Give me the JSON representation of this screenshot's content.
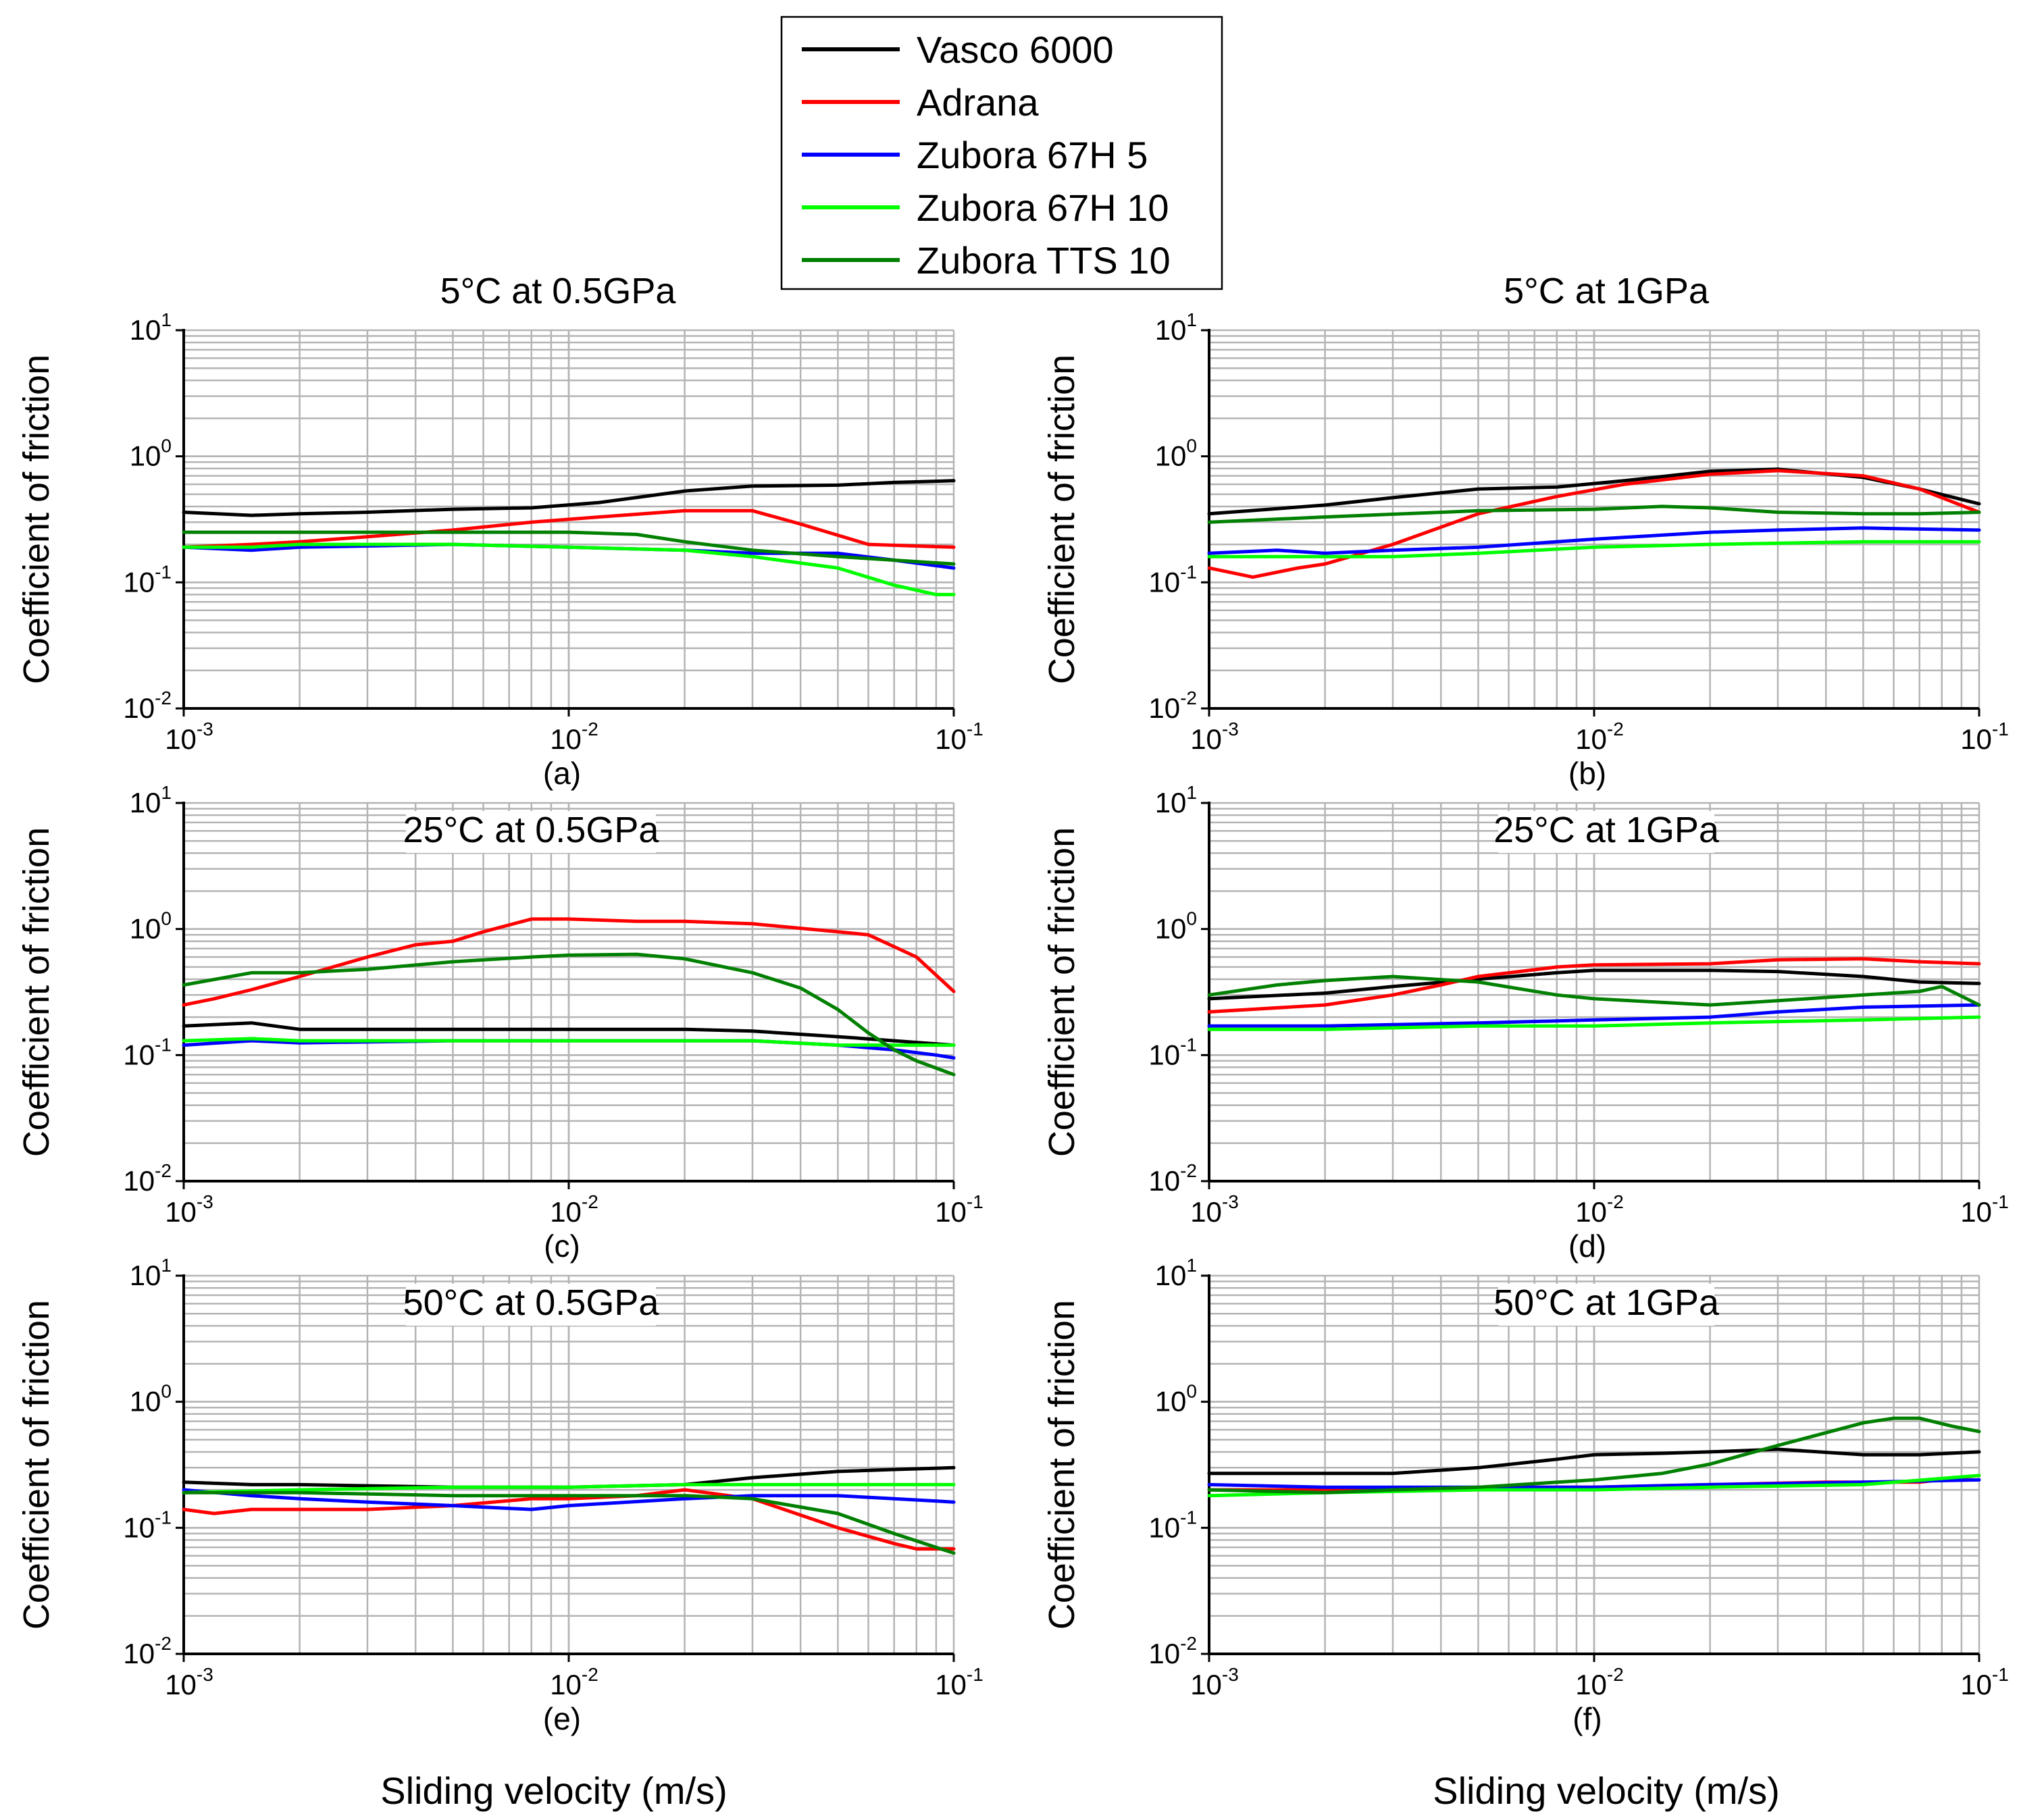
{
  "chart_data": {
    "type": "line",
    "x_scale": "log",
    "y_scale": "log",
    "xlim": [
      0.001,
      0.1
    ],
    "ylim": [
      0.01,
      10
    ],
    "x_ticks": [
      {
        "base": "10",
        "exp": "-3"
      },
      {
        "base": "10",
        "exp": "-2"
      },
      {
        "base": "10",
        "exp": "-1"
      }
    ],
    "y_ticks": [
      {
        "base": "10",
        "exp": "1"
      },
      {
        "base": "10",
        "exp": "0"
      },
      {
        "base": "10",
        "exp": "-1"
      },
      {
        "base": "10",
        "exp": "-2"
      }
    ],
    "ylabel": "Coefficient of friction",
    "xlabel": "Sliding velocity (m/s)",
    "legend": {
      "position": "top-center",
      "entries": [
        {
          "name": "Vasco 6000",
          "color": "#000000"
        },
        {
          "name": "Adrana",
          "color": "#ff0000"
        },
        {
          "name": "Zubora 67H 5",
          "color": "#0000ff"
        },
        {
          "name": "Zubora 67H 10",
          "color": "#00ff00"
        },
        {
          "name": "Zubora TTS 10",
          "color": "#008000"
        }
      ]
    },
    "panels": [
      {
        "id": "a",
        "title": "5°C at 0.5GPa",
        "caption": "(a)",
        "series": [
          {
            "name": "Vasco 6000",
            "x": [
              0.001,
              0.0015,
              0.002,
              0.003,
              0.005,
              0.008,
              0.012,
              0.02,
              0.03,
              0.05,
              0.07,
              0.1
            ],
            "y": [
              0.36,
              0.34,
              0.35,
              0.36,
              0.38,
              0.39,
              0.43,
              0.53,
              0.58,
              0.59,
              0.62,
              0.64
            ]
          },
          {
            "name": "Adrana",
            "x": [
              0.001,
              0.0015,
              0.002,
              0.003,
              0.005,
              0.008,
              0.012,
              0.02,
              0.03,
              0.04,
              0.06,
              0.1
            ],
            "y": [
              0.19,
              0.2,
              0.21,
              0.23,
              0.26,
              0.3,
              0.33,
              0.37,
              0.37,
              0.29,
              0.2,
              0.19
            ]
          },
          {
            "name": "Zubora 67H 5",
            "x": [
              0.001,
              0.0015,
              0.002,
              0.005,
              0.01,
              0.02,
              0.03,
              0.05,
              0.07,
              0.1
            ],
            "y": [
              0.19,
              0.18,
              0.19,
              0.2,
              0.19,
              0.18,
              0.17,
              0.17,
              0.15,
              0.13
            ]
          },
          {
            "name": "Zubora 67H 10",
            "x": [
              0.001,
              0.0015,
              0.002,
              0.005,
              0.01,
              0.02,
              0.03,
              0.05,
              0.07,
              0.09,
              0.1
            ],
            "y": [
              0.19,
              0.19,
              0.2,
              0.2,
              0.19,
              0.18,
              0.16,
              0.13,
              0.095,
              0.08,
              0.08
            ]
          },
          {
            "name": "Zubora TTS 10",
            "x": [
              0.001,
              0.0015,
              0.002,
              0.005,
              0.01,
              0.015,
              0.02,
              0.03,
              0.05,
              0.07,
              0.1
            ],
            "y": [
              0.25,
              0.25,
              0.25,
              0.25,
              0.25,
              0.24,
              0.21,
              0.18,
              0.16,
              0.15,
              0.14
            ]
          }
        ]
      },
      {
        "id": "b",
        "title": "5°C at 1GPa",
        "caption": "(b)",
        "series": [
          {
            "name": "Vasco 6000",
            "x": [
              0.001,
              0.002,
              0.003,
              0.005,
              0.008,
              0.012,
              0.02,
              0.03,
              0.05,
              0.07,
              0.1
            ],
            "y": [
              0.35,
              0.41,
              0.47,
              0.55,
              0.57,
              0.64,
              0.76,
              0.79,
              0.68,
              0.55,
              0.42
            ]
          },
          {
            "name": "Adrana",
            "x": [
              0.001,
              0.0013,
              0.0017,
              0.002,
              0.003,
              0.005,
              0.008,
              0.012,
              0.02,
              0.03,
              0.05,
              0.07,
              0.1
            ],
            "y": [
              0.13,
              0.11,
              0.13,
              0.14,
              0.2,
              0.35,
              0.48,
              0.6,
              0.72,
              0.77,
              0.7,
              0.55,
              0.36
            ]
          },
          {
            "name": "Zubora 67H 5",
            "x": [
              0.001,
              0.0015,
              0.002,
              0.003,
              0.005,
              0.01,
              0.02,
              0.03,
              0.05,
              0.1
            ],
            "y": [
              0.17,
              0.18,
              0.17,
              0.18,
              0.19,
              0.22,
              0.25,
              0.26,
              0.27,
              0.26
            ]
          },
          {
            "name": "Zubora 67H 10",
            "x": [
              0.001,
              0.002,
              0.003,
              0.005,
              0.01,
              0.02,
              0.05,
              0.1
            ],
            "y": [
              0.16,
              0.16,
              0.16,
              0.17,
              0.19,
              0.2,
              0.21,
              0.21
            ]
          },
          {
            "name": "Zubora TTS 10",
            "x": [
              0.001,
              0.002,
              0.005,
              0.01,
              0.015,
              0.02,
              0.03,
              0.05,
              0.07,
              0.1
            ],
            "y": [
              0.3,
              0.33,
              0.37,
              0.38,
              0.4,
              0.39,
              0.36,
              0.35,
              0.35,
              0.36
            ]
          }
        ]
      },
      {
        "id": "c",
        "title": "25°C at 0.5GPa",
        "caption": "(c)",
        "series": [
          {
            "name": "Vasco 6000",
            "x": [
              0.001,
              0.0015,
              0.002,
              0.005,
              0.01,
              0.02,
              0.03,
              0.05,
              0.07,
              0.1
            ],
            "y": [
              0.17,
              0.18,
              0.16,
              0.16,
              0.16,
              0.16,
              0.155,
              0.14,
              0.13,
              0.12
            ]
          },
          {
            "name": "Adrana",
            "x": [
              0.001,
              0.0012,
              0.0015,
              0.002,
              0.003,
              0.004,
              0.005,
              0.006,
              0.008,
              0.01,
              0.015,
              0.02,
              0.03,
              0.05,
              0.06,
              0.08,
              0.1
            ],
            "y": [
              0.25,
              0.28,
              0.33,
              0.42,
              0.6,
              0.75,
              0.8,
              0.95,
              1.2,
              1.2,
              1.15,
              1.15,
              1.1,
              0.95,
              0.9,
              0.6,
              0.32
            ]
          },
          {
            "name": "Zubora 67H 5",
            "x": [
              0.001,
              0.0015,
              0.002,
              0.005,
              0.01,
              0.02,
              0.03,
              0.05,
              0.07,
              0.09,
              0.1
            ],
            "y": [
              0.12,
              0.13,
              0.125,
              0.13,
              0.13,
              0.13,
              0.13,
              0.12,
              0.11,
              0.1,
              0.095
            ]
          },
          {
            "name": "Zubora 67H 10",
            "x": [
              0.001,
              0.0015,
              0.002,
              0.005,
              0.01,
              0.02,
              0.03,
              0.05,
              0.07,
              0.1
            ],
            "y": [
              0.13,
              0.135,
              0.13,
              0.13,
              0.13,
              0.13,
              0.13,
              0.12,
              0.12,
              0.12
            ]
          },
          {
            "name": "Zubora TTS 10",
            "x": [
              0.001,
              0.0015,
              0.002,
              0.003,
              0.005,
              0.008,
              0.01,
              0.015,
              0.02,
              0.03,
              0.04,
              0.05,
              0.06,
              0.07,
              0.08,
              0.1
            ],
            "y": [
              0.36,
              0.45,
              0.45,
              0.48,
              0.55,
              0.6,
              0.62,
              0.63,
              0.58,
              0.45,
              0.34,
              0.23,
              0.15,
              0.11,
              0.09,
              0.07
            ]
          }
        ]
      },
      {
        "id": "d",
        "title": "25°C at 1GPa",
        "caption": "(d)",
        "series": [
          {
            "name": "Vasco 6000",
            "x": [
              0.001,
              0.002,
              0.003,
              0.005,
              0.008,
              0.01,
              0.02,
              0.03,
              0.05,
              0.07,
              0.1
            ],
            "y": [
              0.28,
              0.31,
              0.35,
              0.4,
              0.45,
              0.47,
              0.47,
              0.46,
              0.42,
              0.38,
              0.37
            ]
          },
          {
            "name": "Adrana",
            "x": [
              0.001,
              0.002,
              0.003,
              0.004,
              0.005,
              0.008,
              0.01,
              0.02,
              0.03,
              0.05,
              0.07,
              0.1
            ],
            "y": [
              0.22,
              0.25,
              0.3,
              0.36,
              0.42,
              0.5,
              0.52,
              0.53,
              0.57,
              0.58,
              0.55,
              0.53
            ]
          },
          {
            "name": "Zubora 67H 5",
            "x": [
              0.001,
              0.002,
              0.005,
              0.01,
              0.02,
              0.03,
              0.05,
              0.1
            ],
            "y": [
              0.17,
              0.17,
              0.18,
              0.19,
              0.2,
              0.22,
              0.24,
              0.25
            ]
          },
          {
            "name": "Zubora 67H 10",
            "x": [
              0.001,
              0.002,
              0.005,
              0.01,
              0.02,
              0.05,
              0.1
            ],
            "y": [
              0.16,
              0.16,
              0.17,
              0.17,
              0.18,
              0.19,
              0.2
            ]
          },
          {
            "name": "Zubora TTS 10",
            "x": [
              0.001,
              0.0015,
              0.002,
              0.003,
              0.005,
              0.008,
              0.01,
              0.02,
              0.03,
              0.05,
              0.07,
              0.08,
              0.1
            ],
            "y": [
              0.3,
              0.36,
              0.39,
              0.42,
              0.38,
              0.3,
              0.28,
              0.25,
              0.27,
              0.3,
              0.32,
              0.35,
              0.25
            ]
          }
        ]
      },
      {
        "id": "e",
        "title": "50°C at 0.5GPa",
        "caption": "(e)",
        "series": [
          {
            "name": "Vasco 6000",
            "x": [
              0.001,
              0.0015,
              0.002,
              0.005,
              0.01,
              0.02,
              0.03,
              0.05,
              0.07,
              0.1
            ],
            "y": [
              0.23,
              0.22,
              0.22,
              0.21,
              0.21,
              0.22,
              0.25,
              0.28,
              0.29,
              0.3
            ]
          },
          {
            "name": "Adrana",
            "x": [
              0.001,
              0.0012,
              0.0015,
              0.002,
              0.003,
              0.005,
              0.008,
              0.01,
              0.015,
              0.02,
              0.03,
              0.05,
              0.07,
              0.08,
              0.1
            ],
            "y": [
              0.14,
              0.13,
              0.14,
              0.14,
              0.14,
              0.15,
              0.17,
              0.17,
              0.18,
              0.2,
              0.17,
              0.1,
              0.075,
              0.068,
              0.068
            ]
          },
          {
            "name": "Zubora 67H 5",
            "x": [
              0.001,
              0.0015,
              0.002,
              0.003,
              0.005,
              0.008,
              0.01,
              0.02,
              0.03,
              0.05,
              0.07,
              0.1
            ],
            "y": [
              0.2,
              0.18,
              0.17,
              0.16,
              0.15,
              0.14,
              0.15,
              0.17,
              0.18,
              0.18,
              0.17,
              0.16
            ]
          },
          {
            "name": "Zubora 67H 10",
            "x": [
              0.001,
              0.002,
              0.005,
              0.01,
              0.02,
              0.05,
              0.07,
              0.1
            ],
            "y": [
              0.19,
              0.2,
              0.21,
              0.21,
              0.22,
              0.22,
              0.22,
              0.22
            ]
          },
          {
            "name": "Zubora TTS 10",
            "x": [
              0.001,
              0.002,
              0.005,
              0.01,
              0.02,
              0.03,
              0.05,
              0.07,
              0.1
            ],
            "y": [
              0.19,
              0.19,
              0.18,
              0.18,
              0.18,
              0.17,
              0.13,
              0.09,
              0.063
            ]
          }
        ]
      },
      {
        "id": "f",
        "title": "50°C at 1GPa",
        "caption": "(f)",
        "series": [
          {
            "name": "Vasco 6000",
            "x": [
              0.001,
              0.002,
              0.003,
              0.005,
              0.008,
              0.01,
              0.015,
              0.02,
              0.03,
              0.05,
              0.07,
              0.1
            ],
            "y": [
              0.27,
              0.27,
              0.27,
              0.3,
              0.35,
              0.38,
              0.39,
              0.4,
              0.42,
              0.38,
              0.38,
              0.4
            ]
          },
          {
            "name": "Adrana",
            "x": [
              0.001,
              0.002,
              0.005,
              0.01,
              0.02,
              0.04,
              0.05,
              0.07,
              0.1
            ],
            "y": [
              0.2,
              0.2,
              0.21,
              0.21,
              0.22,
              0.23,
              0.23,
              0.23,
              0.26
            ]
          },
          {
            "name": "Zubora 67H 5",
            "x": [
              0.001,
              0.002,
              0.005,
              0.01,
              0.02,
              0.05,
              0.1
            ],
            "y": [
              0.22,
              0.21,
              0.21,
              0.21,
              0.22,
              0.23,
              0.24
            ]
          },
          {
            "name": "Zubora 67H 10",
            "x": [
              0.001,
              0.002,
              0.005,
              0.01,
              0.02,
              0.05,
              0.1
            ],
            "y": [
              0.18,
              0.19,
              0.2,
              0.2,
              0.21,
              0.22,
              0.26
            ]
          },
          {
            "name": "Zubora TTS 10",
            "x": [
              0.001,
              0.002,
              0.003,
              0.005,
              0.01,
              0.015,
              0.02,
              0.03,
              0.05,
              0.06,
              0.07,
              0.085,
              0.1
            ],
            "y": [
              0.2,
              0.19,
              0.2,
              0.21,
              0.24,
              0.27,
              0.32,
              0.45,
              0.68,
              0.74,
              0.74,
              0.64,
              0.58
            ]
          }
        ]
      }
    ]
  }
}
